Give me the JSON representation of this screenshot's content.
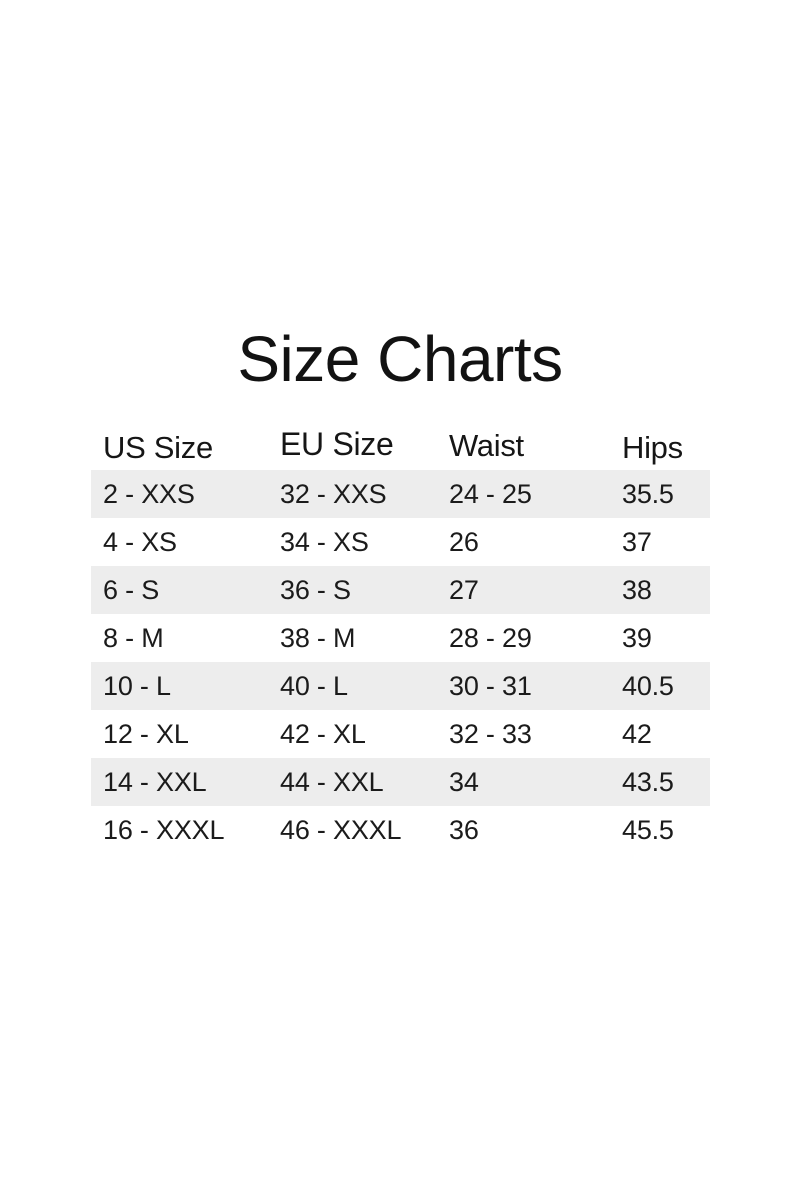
{
  "title": "Size Charts",
  "table": {
    "headers": [
      "US Size",
      "EU Size",
      "Waist",
      "Hips"
    ],
    "rows": [
      [
        "2 - XXS",
        "32 - XXS",
        "24 - 25",
        "35.5"
      ],
      [
        "4 - XS",
        "34 - XS",
        "26",
        "37"
      ],
      [
        "6 - S",
        "36 - S",
        "27",
        "38"
      ],
      [
        "8 - M",
        "38 - M",
        "28 - 29",
        "39"
      ],
      [
        "10 - L",
        "40 - L",
        "30 - 31",
        "40.5"
      ],
      [
        "12 - XL",
        "42 - XL",
        "32 - 33",
        "42"
      ],
      [
        "14 - XXL",
        "44 - XXL",
        "34",
        "43.5"
      ],
      [
        "16 - XXXL",
        "46 - XXXL",
        "36",
        "45.5"
      ]
    ]
  },
  "colors": {
    "background": "#ffffff",
    "stripe": "#ededed",
    "text": "#1b1b1b",
    "title_text": "#121212"
  }
}
